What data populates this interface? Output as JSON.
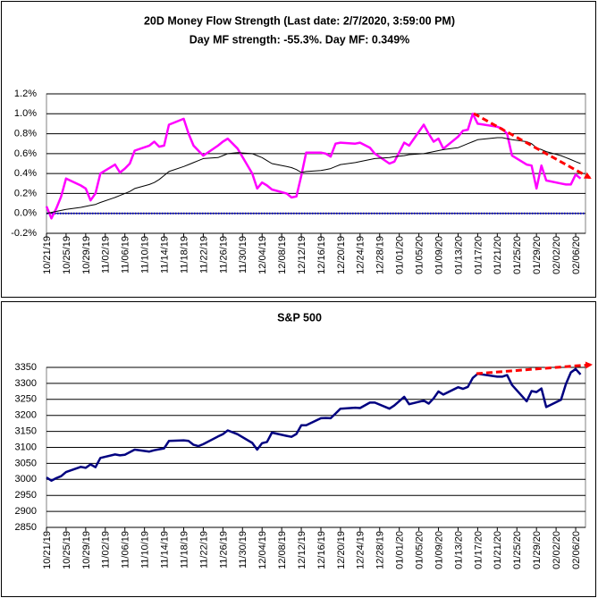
{
  "chart_data": [
    {
      "type": "line",
      "title": "20D Money Flow Strength (Last date: 2/7/2020, 3:59:00 PM)",
      "subtitle": "Day MF strength: -55.3%. Day MF: 0.349%",
      "x": [
        "10/21/19",
        "10/22/19",
        "10/23/19",
        "10/24/19",
        "10/25/19",
        "10/28/19",
        "10/29/19",
        "10/30/19",
        "10/31/19",
        "11/01/19",
        "11/04/19",
        "11/05/19",
        "11/06/19",
        "11/07/19",
        "11/08/19",
        "11/11/19",
        "11/12/19",
        "11/13/19",
        "11/14/19",
        "11/15/19",
        "11/18/19",
        "11/19/19",
        "11/20/19",
        "11/21/19",
        "11/22/19",
        "11/25/19",
        "11/26/19",
        "11/27/19",
        "11/29/19",
        "12/02/19",
        "12/03/19",
        "12/04/19",
        "12/05/19",
        "12/06/19",
        "12/09/19",
        "12/10/19",
        "12/11/19",
        "12/12/19",
        "12/13/19",
        "12/16/19",
        "12/17/19",
        "12/18/19",
        "12/19/19",
        "12/20/19",
        "12/23/19",
        "12/24/19",
        "12/26/19",
        "12/27/19",
        "12/30/19",
        "12/31/19",
        "01/02/20",
        "01/03/20",
        "01/06/20",
        "01/07/20",
        "01/08/20",
        "01/09/20",
        "01/10/20",
        "01/13/20",
        "01/14/20",
        "01/15/20",
        "01/16/20",
        "01/17/20",
        "01/21/20",
        "01/22/20",
        "01/23/20",
        "01/24/20",
        "01/27/20",
        "01/28/20",
        "01/29/20",
        "01/30/20",
        "01/31/20",
        "02/03/20",
        "02/04/20",
        "02/05/20",
        "02/06/20",
        "02/07/20"
      ],
      "series": [
        {
          "color": "#ff00ff",
          "values": [
            0.07,
            -0.05,
            0.05,
            0.17,
            0.35,
            0.28,
            0.25,
            0.13,
            0.2,
            0.4,
            0.49,
            0.41,
            0.45,
            0.5,
            0.63,
            0.68,
            0.72,
            0.67,
            0.68,
            0.89,
            0.95,
            0.8,
            0.68,
            0.63,
            0.58,
            0.68,
            0.72,
            0.75,
            0.65,
            0.4,
            0.25,
            0.31,
            0.28,
            0.24,
            0.2,
            0.16,
            0.17,
            0.38,
            0.61,
            0.61,
            0.6,
            0.57,
            0.7,
            0.71,
            0.7,
            0.71,
            0.66,
            0.6,
            0.5,
            0.52,
            0.71,
            0.68,
            0.89,
            0.8,
            0.72,
            0.75,
            0.65,
            0.77,
            0.83,
            0.84,
            1.0,
            0.9,
            0.87,
            0.85,
            0.8,
            0.58,
            0.49,
            0.48,
            0.25,
            0.48,
            0.33,
            0.3,
            0.29,
            0.29,
            0.39,
            0.35
          ]
        },
        {
          "color": "#000000",
          "values": [
            0.0,
            0.01,
            0.02,
            0.03,
            0.04,
            0.06,
            0.07,
            0.08,
            0.09,
            0.11,
            0.16,
            0.18,
            0.2,
            0.22,
            0.25,
            0.29,
            0.31,
            0.34,
            0.38,
            0.42,
            0.47,
            0.49,
            0.51,
            0.53,
            0.55,
            0.56,
            0.58,
            0.6,
            0.61,
            0.6,
            0.58,
            0.56,
            0.53,
            0.5,
            0.47,
            0.46,
            0.44,
            0.41,
            0.42,
            0.43,
            0.44,
            0.45,
            0.47,
            0.49,
            0.51,
            0.52,
            0.54,
            0.55,
            0.56,
            0.57,
            0.58,
            0.59,
            0.6,
            0.61,
            0.62,
            0.63,
            0.64,
            0.66,
            0.68,
            0.7,
            0.72,
            0.74,
            0.76,
            0.76,
            0.75,
            0.74,
            0.72,
            0.7,
            0.66,
            0.64,
            0.62,
            0.58,
            0.56,
            0.54,
            0.52,
            0.5
          ]
        }
      ],
      "reference_line": {
        "value": 0,
        "color": "#0000cc"
      },
      "xlim": [
        "10/21/19",
        "02/08/20"
      ],
      "xticks": [
        "10/21/19",
        "10/25/19",
        "10/29/19",
        "11/02/19",
        "11/06/19",
        "11/10/19",
        "11/14/19",
        "11/18/19",
        "11/22/19",
        "11/26/19",
        "11/30/19",
        "12/04/19",
        "12/08/19",
        "12/12/19",
        "12/16/19",
        "12/20/19",
        "12/24/19",
        "12/28/19",
        "01/01/20",
        "01/05/20",
        "01/09/20",
        "01/13/20",
        "01/17/20",
        "01/21/20",
        "01/25/20",
        "01/29/20",
        "02/02/20",
        "02/06/20"
      ],
      "ylim": [
        -0.2,
        1.2
      ],
      "yticks": [
        {
          "value": -0.2,
          "label": "-0.2%"
        },
        {
          "value": 0,
          "label": "0.0%"
        },
        {
          "value": 0.2,
          "label": "0.2%"
        },
        {
          "value": 0.4,
          "label": "0.4%"
        },
        {
          "value": 0.6,
          "label": "0.6%"
        },
        {
          "value": 0.8,
          "label": "0.8%"
        },
        {
          "value": 1.0,
          "label": "1.0%"
        },
        {
          "value": 1.2,
          "label": "1.2%"
        }
      ],
      "grid": true
    },
    {
      "type": "line",
      "title": "S&P 500",
      "x": [
        "10/21/19",
        "10/22/19",
        "10/23/19",
        "10/24/19",
        "10/25/19",
        "10/28/19",
        "10/29/19",
        "10/30/19",
        "10/31/19",
        "11/01/19",
        "11/04/19",
        "11/05/19",
        "11/06/19",
        "11/07/19",
        "11/08/19",
        "11/11/19",
        "11/12/19",
        "11/13/19",
        "11/14/19",
        "11/15/19",
        "11/18/19",
        "11/19/19",
        "11/20/19",
        "11/21/19",
        "11/22/19",
        "11/25/19",
        "11/26/19",
        "11/27/19",
        "11/29/19",
        "12/02/19",
        "12/03/19",
        "12/04/19",
        "12/05/19",
        "12/06/19",
        "12/09/19",
        "12/10/19",
        "12/11/19",
        "12/12/19",
        "12/13/19",
        "12/16/19",
        "12/17/19",
        "12/18/19",
        "12/19/19",
        "12/20/19",
        "12/23/19",
        "12/24/19",
        "12/26/19",
        "12/27/19",
        "12/30/19",
        "12/31/19",
        "01/02/20",
        "01/03/20",
        "01/06/20",
        "01/07/20",
        "01/08/20",
        "01/09/20",
        "01/10/20",
        "01/13/20",
        "01/14/20",
        "01/15/20",
        "01/16/20",
        "01/17/20",
        "01/21/20",
        "01/22/20",
        "01/23/20",
        "01/24/20",
        "01/27/20",
        "01/28/20",
        "01/29/20",
        "01/30/20",
        "01/31/20",
        "02/03/20",
        "02/04/20",
        "02/05/20",
        "02/06/20",
        "02/07/20"
      ],
      "series": [
        {
          "color": "#000080",
          "values": [
            3006,
            2996,
            3004,
            3010,
            3023,
            3039,
            3036,
            3047,
            3038,
            3067,
            3078,
            3075,
            3077,
            3085,
            3093,
            3087,
            3091,
            3094,
            3097,
            3120,
            3122,
            3120,
            3108,
            3104,
            3110,
            3134,
            3141,
            3153,
            3141,
            3114,
            3093,
            3113,
            3117,
            3146,
            3136,
            3133,
            3142,
            3169,
            3169,
            3191,
            3192,
            3191,
            3206,
            3221,
            3224,
            3223,
            3240,
            3240,
            3221,
            3231,
            3258,
            3235,
            3246,
            3237,
            3253,
            3275,
            3265,
            3288,
            3283,
            3289,
            3317,
            3330,
            3321,
            3321,
            3326,
            3295,
            3244,
            3276,
            3273,
            3284,
            3226,
            3249,
            3298,
            3334,
            3345,
            3328
          ]
        }
      ],
      "xlim": [
        "10/21/19",
        "02/08/20"
      ],
      "xticks": [
        "10/21/19",
        "10/25/19",
        "10/29/19",
        "11/02/19",
        "11/06/19",
        "11/10/19",
        "11/14/19",
        "11/18/19",
        "11/22/19",
        "11/26/19",
        "11/30/19",
        "12/04/19",
        "12/08/19",
        "12/12/19",
        "12/16/19",
        "12/20/19",
        "12/24/19",
        "12/28/19",
        "01/01/20",
        "01/05/20",
        "01/09/20",
        "01/13/20",
        "01/17/20",
        "01/21/20",
        "01/25/20",
        "01/29/20",
        "02/02/20",
        "02/06/20"
      ],
      "ylim": [
        2850,
        3350
      ],
      "yticks": [
        2850,
        2900,
        2950,
        3000,
        3050,
        3100,
        3150,
        3200,
        3250,
        3300,
        3350
      ],
      "grid": true
    }
  ]
}
